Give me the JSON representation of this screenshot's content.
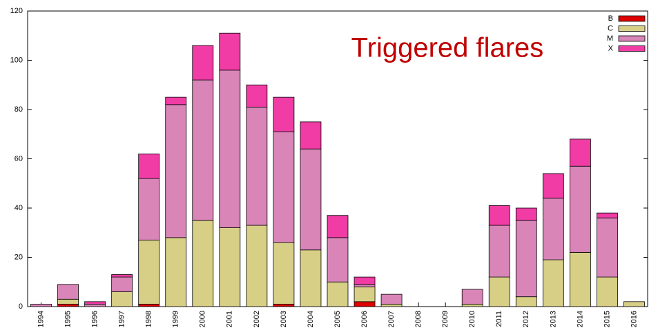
{
  "chart_data": {
    "type": "stacked_bar",
    "annotation": "Triggered flares",
    "categories": [
      "1994",
      "1995",
      "1996",
      "1997",
      "1998",
      "1999",
      "2000",
      "2001",
      "2002",
      "2003",
      "2004",
      "2005",
      "2006",
      "2007",
      "2008",
      "2009",
      "2010",
      "2011",
      "2012",
      "2013",
      "2014",
      "2015",
      "2016"
    ],
    "series": [
      {
        "name": "B",
        "color": "#e00000",
        "values": [
          0,
          1,
          0,
          0,
          1,
          0,
          0,
          0,
          0,
          1,
          0,
          0,
          2,
          0,
          0,
          0,
          0,
          0,
          0,
          0,
          0,
          0,
          0
        ]
      },
      {
        "name": "C",
        "color": "#d8cf87",
        "values": [
          0,
          2,
          0,
          6,
          26,
          28,
          35,
          32,
          33,
          25,
          23,
          10,
          6,
          1,
          0,
          0,
          1,
          12,
          4,
          19,
          22,
          12,
          2
        ]
      },
      {
        "name": "M",
        "color": "#d985b8",
        "values": [
          1,
          6,
          1,
          6,
          25,
          54,
          57,
          64,
          48,
          45,
          41,
          18,
          1,
          4,
          0,
          0,
          6,
          21,
          31,
          25,
          35,
          24,
          0
        ]
      },
      {
        "name": "X",
        "color": "#f03ca4",
        "values": [
          0,
          0,
          1,
          1,
          10,
          3,
          14,
          15,
          9,
          14,
          11,
          9,
          3,
          0,
          0,
          0,
          0,
          8,
          5,
          10,
          11,
          2,
          0
        ]
      }
    ],
    "ylim": [
      0,
      120
    ],
    "yticks": [
      0,
      20,
      40,
      60,
      80,
      100,
      120
    ],
    "legend": "top-right",
    "grid": false
  }
}
